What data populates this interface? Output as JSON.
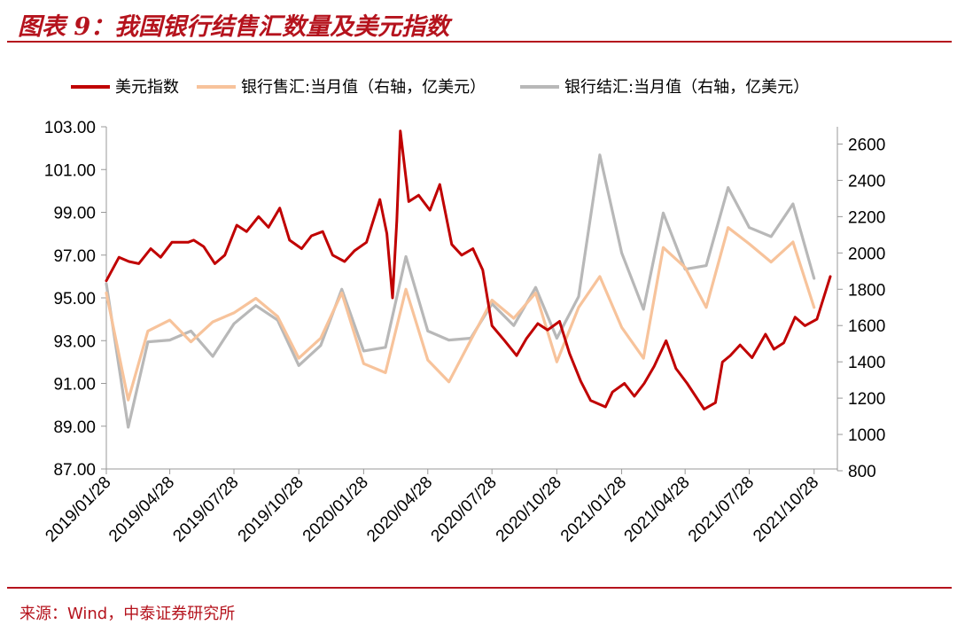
{
  "header": {
    "title": "图表 9：我国银行结售汇数量及美元指数"
  },
  "footer": {
    "source": "来源：Wind，中泰证券研究所"
  },
  "chart_data": {
    "type": "line",
    "legend_position": "top",
    "grid": false,
    "x_axis": {
      "tick_labels": [
        "2019/01/28",
        "2019/04/28",
        "2019/07/28",
        "2019/10/28",
        "2020/01/28",
        "2020/04/28",
        "2020/07/28",
        "2020/10/28",
        "2021/01/28",
        "2021/04/28",
        "2021/07/28",
        "2021/10/28"
      ],
      "range": [
        "2019/01/28",
        "2021/11/30"
      ]
    },
    "y_left": {
      "range": [
        87,
        103
      ],
      "ticks": [
        "87.00",
        "89.00",
        "91.00",
        "93.00",
        "95.00",
        "97.00",
        "99.00",
        "101.00",
        "103.00"
      ]
    },
    "y_right": {
      "range": [
        800,
        2700
      ],
      "ticks": [
        "800",
        "1000",
        "1200",
        "1400",
        "1600",
        "1800",
        "2000",
        "2200",
        "2400",
        "2600"
      ]
    },
    "series": [
      {
        "name": "美元指数",
        "axis": "left",
        "color": "#c00000",
        "points": [
          [
            "2019/01/28",
            95.8
          ],
          [
            "2019/02/15",
            96.9
          ],
          [
            "2019/03/01",
            96.7
          ],
          [
            "2019/03/15",
            96.6
          ],
          [
            "2019/04/01",
            97.3
          ],
          [
            "2019/04/15",
            96.9
          ],
          [
            "2019/05/01",
            97.6
          ],
          [
            "2019/05/24",
            97.6
          ],
          [
            "2019/06/01",
            97.7
          ],
          [
            "2019/06/15",
            97.4
          ],
          [
            "2019/07/01",
            96.6
          ],
          [
            "2019/07/15",
            97.0
          ],
          [
            "2019/08/01",
            98.4
          ],
          [
            "2019/08/15",
            98.1
          ],
          [
            "2019/09/01",
            98.8
          ],
          [
            "2019/09/15",
            98.3
          ],
          [
            "2019/10/01",
            99.2
          ],
          [
            "2019/10/15",
            97.7
          ],
          [
            "2019/11/01",
            97.3
          ],
          [
            "2019/11/15",
            97.9
          ],
          [
            "2019/12/01",
            98.1
          ],
          [
            "2019/12/15",
            97.0
          ],
          [
            "2020/01/01",
            96.7
          ],
          [
            "2020/01/15",
            97.2
          ],
          [
            "2020/02/01",
            97.6
          ],
          [
            "2020/02/20",
            99.6
          ],
          [
            "2020/03/01",
            98.0
          ],
          [
            "2020/03/09",
            95.0
          ],
          [
            "2020/03/15",
            98.6
          ],
          [
            "2020/03/20",
            102.8
          ],
          [
            "2020/04/01",
            99.5
          ],
          [
            "2020/04/15",
            99.8
          ],
          [
            "2020/05/01",
            99.1
          ],
          [
            "2020/05/15",
            100.3
          ],
          [
            "2020/06/01",
            97.5
          ],
          [
            "2020/06/15",
            97.0
          ],
          [
            "2020/07/01",
            97.3
          ],
          [
            "2020/07/15",
            96.3
          ],
          [
            "2020/07/28",
            93.7
          ],
          [
            "2020/08/15",
            93.0
          ],
          [
            "2020/09/01",
            92.3
          ],
          [
            "2020/09/15",
            93.1
          ],
          [
            "2020/10/01",
            93.8
          ],
          [
            "2020/10/15",
            93.5
          ],
          [
            "2020/11/01",
            93.9
          ],
          [
            "2020/11/15",
            92.4
          ],
          [
            "2020/12/01",
            91.1
          ],
          [
            "2020/12/15",
            90.2
          ],
          [
            "2021/01/05",
            89.9
          ],
          [
            "2021/01/15",
            90.6
          ],
          [
            "2021/02/01",
            91.0
          ],
          [
            "2021/02/15",
            90.4
          ],
          [
            "2021/03/01",
            91.0
          ],
          [
            "2021/03/15",
            91.8
          ],
          [
            "2021/04/01",
            93.0
          ],
          [
            "2021/04/15",
            91.7
          ],
          [
            "2021/05/01",
            91.0
          ],
          [
            "2021/05/25",
            89.8
          ],
          [
            "2021/06/10",
            90.1
          ],
          [
            "2021/06/20",
            92.0
          ],
          [
            "2021/07/01",
            92.3
          ],
          [
            "2021/07/15",
            92.8
          ],
          [
            "2021/08/01",
            92.2
          ],
          [
            "2021/08/20",
            93.3
          ],
          [
            "2021/09/01",
            92.6
          ],
          [
            "2021/09/15",
            92.9
          ],
          [
            "2021/10/01",
            94.1
          ],
          [
            "2021/10/15",
            93.7
          ],
          [
            "2021/11/01",
            94.0
          ],
          [
            "2021/11/20",
            96.0
          ]
        ]
      },
      {
        "name": "银行售汇:当月值（右轴，亿美元）",
        "axis": "right",
        "color": "#f7c39b",
        "points": [
          [
            "2019/01/28",
            1780
          ],
          [
            "2019/02/28",
            1190
          ],
          [
            "2019/03/28",
            1570
          ],
          [
            "2019/04/28",
            1630
          ],
          [
            "2019/05/28",
            1510
          ],
          [
            "2019/06/28",
            1620
          ],
          [
            "2019/07/28",
            1670
          ],
          [
            "2019/08/28",
            1750
          ],
          [
            "2019/09/28",
            1650
          ],
          [
            "2019/10/28",
            1420
          ],
          [
            "2019/11/28",
            1530
          ],
          [
            "2019/12/28",
            1780
          ],
          [
            "2020/01/28",
            1390
          ],
          [
            "2020/02/28",
            1340
          ],
          [
            "2020/03/28",
            1800
          ],
          [
            "2020/04/28",
            1410
          ],
          [
            "2020/05/28",
            1290
          ],
          [
            "2020/06/28",
            1520
          ],
          [
            "2020/07/28",
            1740
          ],
          [
            "2020/08/28",
            1640
          ],
          [
            "2020/09/28",
            1780
          ],
          [
            "2020/10/28",
            1400
          ],
          [
            "2020/11/28",
            1700
          ],
          [
            "2020/12/28",
            1870
          ],
          [
            "2021/01/28",
            1590
          ],
          [
            "2021/02/28",
            1420
          ],
          [
            "2021/03/28",
            2030
          ],
          [
            "2021/04/28",
            1920
          ],
          [
            "2021/05/28",
            1700
          ],
          [
            "2021/06/28",
            2140
          ],
          [
            "2021/07/28",
            2050
          ],
          [
            "2021/08/28",
            1950
          ],
          [
            "2021/09/28",
            2060
          ],
          [
            "2021/10/28",
            1700
          ]
        ]
      },
      {
        "name": "银行结汇:当月值（右轴，亿美元）",
        "axis": "right",
        "color": "#b8b8b8",
        "points": [
          [
            "2019/01/28",
            1830
          ],
          [
            "2019/02/28",
            1040
          ],
          [
            "2019/03/28",
            1510
          ],
          [
            "2019/04/28",
            1520
          ],
          [
            "2019/05/28",
            1570
          ],
          [
            "2019/06/28",
            1430
          ],
          [
            "2019/07/28",
            1610
          ],
          [
            "2019/08/28",
            1710
          ],
          [
            "2019/09/28",
            1630
          ],
          [
            "2019/10/28",
            1380
          ],
          [
            "2019/11/28",
            1490
          ],
          [
            "2019/12/28",
            1800
          ],
          [
            "2020/01/28",
            1460
          ],
          [
            "2020/02/28",
            1480
          ],
          [
            "2020/03/28",
            1980
          ],
          [
            "2020/04/28",
            1570
          ],
          [
            "2020/05/28",
            1520
          ],
          [
            "2020/06/28",
            1530
          ],
          [
            "2020/07/28",
            1720
          ],
          [
            "2020/08/28",
            1600
          ],
          [
            "2020/09/28",
            1810
          ],
          [
            "2020/10/28",
            1530
          ],
          [
            "2020/11/28",
            1760
          ],
          [
            "2020/12/28",
            2540
          ],
          [
            "2021/01/28",
            2000
          ],
          [
            "2021/02/28",
            1690
          ],
          [
            "2021/03/28",
            2220
          ],
          [
            "2021/04/28",
            1910
          ],
          [
            "2021/05/28",
            1930
          ],
          [
            "2021/06/28",
            2360
          ],
          [
            "2021/07/28",
            2140
          ],
          [
            "2021/08/28",
            2090
          ],
          [
            "2021/09/28",
            2270
          ],
          [
            "2021/10/28",
            1860
          ]
        ]
      }
    ]
  }
}
